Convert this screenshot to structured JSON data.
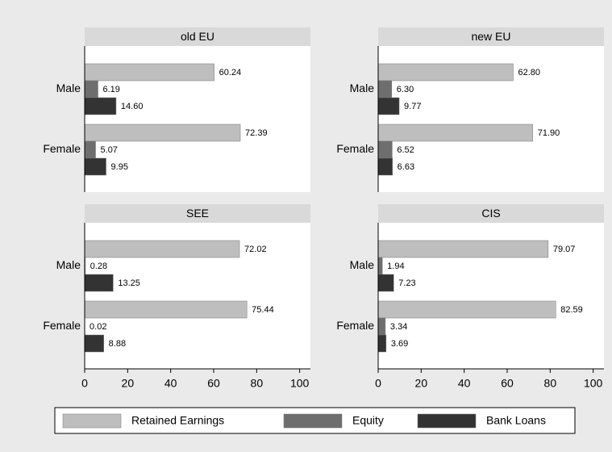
{
  "chart_data": {
    "type": "bar",
    "orientation": "horizontal",
    "xlim": [
      0,
      105
    ],
    "xticks": [
      0,
      20,
      40,
      60,
      80,
      100
    ],
    "series": [
      {
        "name": "Retained Earnings",
        "color": "#bebebe"
      },
      {
        "name": "Equity",
        "color": "#6e6e6e"
      },
      {
        "name": "Bank Loans",
        "color": "#333333"
      }
    ],
    "panels": [
      {
        "title": "old EU",
        "categories": [
          "Male",
          "Female"
        ],
        "series": [
          {
            "values": [
              60.24,
              72.39
            ],
            "value_labels": [
              "60.24",
              "72.39"
            ]
          },
          {
            "values": [
              6.19,
              5.07
            ],
            "value_labels": [
              "6.19",
              "5.07"
            ]
          },
          {
            "values": [
              14.6,
              9.95
            ],
            "value_labels": [
              "14.60",
              "9.95"
            ]
          }
        ]
      },
      {
        "title": "new EU",
        "categories": [
          "Male",
          "Female"
        ],
        "series": [
          {
            "values": [
              62.8,
              71.9
            ],
            "value_labels": [
              "62.80",
              "71.90"
            ]
          },
          {
            "values": [
              6.3,
              6.52
            ],
            "value_labels": [
              "6.30",
              "6.52"
            ]
          },
          {
            "values": [
              9.77,
              6.63
            ],
            "value_labels": [
              "9.77",
              "6.63"
            ]
          }
        ]
      },
      {
        "title": "SEE",
        "categories": [
          "Male",
          "Female"
        ],
        "series": [
          {
            "values": [
              72.02,
              75.44
            ],
            "value_labels": [
              "72.02",
              "75.44"
            ]
          },
          {
            "values": [
              0.28,
              0.02
            ],
            "value_labels": [
              "0.28",
              "0.02"
            ]
          },
          {
            "values": [
              13.25,
              8.88
            ],
            "value_labels": [
              "13.25",
              "8.88"
            ]
          }
        ]
      },
      {
        "title": "CIS",
        "categories": [
          "Male",
          "Female"
        ],
        "series": [
          {
            "values": [
              79.07,
              82.59
            ],
            "value_labels": [
              "79.07",
              "82.59"
            ]
          },
          {
            "values": [
              1.94,
              3.34
            ],
            "value_labels": [
              "1.94",
              "3.34"
            ]
          },
          {
            "values": [
              7.23,
              3.69
            ],
            "value_labels": [
              "7.23",
              "3.69"
            ]
          }
        ]
      }
    ]
  }
}
